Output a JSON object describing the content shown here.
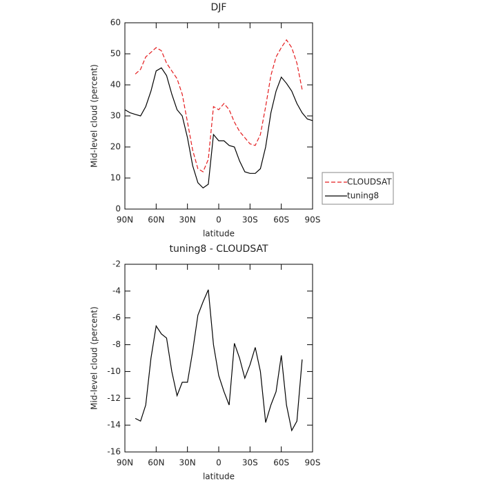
{
  "chart_data": [
    {
      "type": "line",
      "title": "DJF",
      "xlabel": "latitude",
      "ylabel": "Mid-level cloud (percent)",
      "x": [
        90,
        85,
        80,
        75,
        70,
        65,
        60,
        55,
        50,
        45,
        40,
        35,
        30,
        25,
        20,
        15,
        10,
        5,
        0,
        -5,
        -10,
        -15,
        -20,
        -25,
        -30,
        -35,
        -40,
        -45,
        -50,
        -55,
        -60,
        -65,
        -70,
        -75,
        -80,
        -85,
        -90
      ],
      "series": [
        {
          "name": "CLOUDSAT",
          "color": "#e41a1c",
          "dash": true,
          "values": [
            null,
            null,
            43.5,
            45,
            49,
            50.5,
            52,
            51,
            47,
            44.5,
            42,
            37,
            28,
            19,
            13,
            12,
            16,
            33,
            32,
            34,
            32,
            28,
            25,
            23,
            21,
            20.5,
            24,
            33,
            43,
            49,
            52,
            54.5,
            52,
            47,
            38.5,
            null,
            null
          ]
        },
        {
          "name": "tuning8",
          "color": "#000000",
          "dash": false,
          "values": [
            32,
            31,
            30.5,
            30,
            33,
            38,
            44.5,
            45.5,
            43,
            37,
            32,
            30,
            23,
            14,
            8.5,
            6.8,
            8,
            24,
            22,
            22,
            20.5,
            20,
            15.5,
            12,
            11.5,
            11.5,
            13,
            20,
            31,
            38,
            42.5,
            40.5,
            38,
            34,
            31,
            29,
            28.5
          ]
        }
      ],
      "xlim": [
        90,
        -90
      ],
      "xticks": [
        {
          "value": 90,
          "label": "90N"
        },
        {
          "value": 60,
          "label": "60N"
        },
        {
          "value": 30,
          "label": "30N"
        },
        {
          "value": 0,
          "label": "0"
        },
        {
          "value": -30,
          "label": "30S"
        },
        {
          "value": -60,
          "label": "60S"
        },
        {
          "value": -90,
          "label": "90S"
        }
      ],
      "ylim": [
        0,
        60
      ],
      "yticks": [
        0,
        10,
        20,
        30,
        40,
        50,
        60
      ],
      "legend": "right"
    },
    {
      "type": "line",
      "title": "tuning8 - CLOUDSAT",
      "xlabel": "latitude",
      "ylabel": "Mid-level cloud (percent)",
      "x": [
        90,
        85,
        80,
        75,
        70,
        65,
        60,
        55,
        50,
        45,
        40,
        35,
        30,
        25,
        20,
        15,
        10,
        5,
        0,
        -5,
        -10,
        -15,
        -20,
        -25,
        -30,
        -35,
        -40,
        -45,
        -50,
        -55,
        -60,
        -65,
        -70,
        -75,
        -80,
        -85,
        -90
      ],
      "color": "#000000",
      "values": [
        null,
        null,
        -13.5,
        -13.7,
        -12.5,
        -9,
        -6.6,
        -7.2,
        -7.5,
        -10,
        -11.8,
        -10.8,
        -10.8,
        -8.5,
        -5.8,
        -4.8,
        -3.9,
        -8,
        -10.3,
        -11.5,
        -12.5,
        -7.9,
        -9,
        -10.5,
        -9.5,
        -8.2,
        -10,
        -13.8,
        -12.5,
        -11.5,
        -8.8,
        -12.5,
        -14.4,
        -13.7,
        -9.1,
        null,
        null
      ],
      "xlim": [
        90,
        -90
      ],
      "xticks": [
        {
          "value": 90,
          "label": "90N"
        },
        {
          "value": 60,
          "label": "60N"
        },
        {
          "value": 30,
          "label": "30N"
        },
        {
          "value": 0,
          "label": "0"
        },
        {
          "value": -30,
          "label": "30S"
        },
        {
          "value": -60,
          "label": "60S"
        },
        {
          "value": -90,
          "label": "90S"
        }
      ],
      "ylim": [
        -16,
        -2
      ],
      "yticks": [
        -16,
        -14,
        -12,
        -10,
        -8,
        -6,
        -4,
        -2
      ]
    }
  ]
}
